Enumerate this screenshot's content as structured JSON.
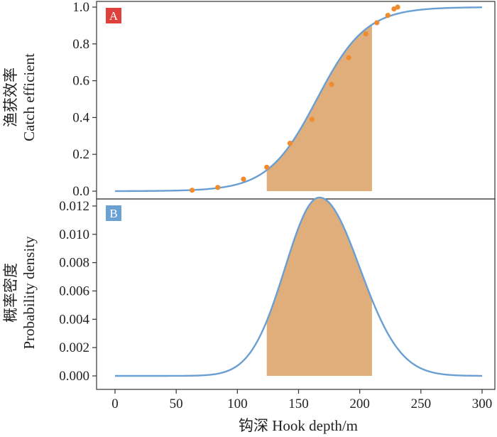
{
  "colors": {
    "curve": "#6a9fd4",
    "fill": "#dfae7b",
    "points": "#f08c2e",
    "axis": "#333333",
    "tag_a": "#e0403c",
    "tag_b": "#6aa0d2"
  },
  "chart_data": [
    {
      "panel": "A",
      "type": "line",
      "ylabel_cn": "渔获效率",
      "ylabel_en": "Catch efficient",
      "xlim": [
        0,
        300
      ],
      "ylim": [
        0,
        1.0
      ],
      "yticks": [
        "0.0",
        "0.2",
        "0.4",
        "0.6",
        "0.8",
        "1.0"
      ],
      "curve": {
        "kind": "logistic",
        "midpoint": 165,
        "scale": 20,
        "x_start": 0,
        "x_end": 300
      },
      "shaded_range": [
        124,
        210
      ],
      "points": {
        "x": [
          63,
          84,
          105,
          124,
          143,
          161,
          177,
          191,
          205,
          214,
          223,
          228,
          231
        ],
        "y": [
          0.005,
          0.02,
          0.065,
          0.13,
          0.26,
          0.39,
          0.58,
          0.725,
          0.855,
          0.915,
          0.955,
          0.99,
          1.0
        ]
      }
    },
    {
      "panel": "B",
      "type": "line",
      "ylabel_cn": "概率密度",
      "ylabel_en": "Probability density",
      "xlabel": "钩深 Hook depth/m",
      "xlim": [
        0,
        300
      ],
      "xticks": [
        "0",
        "50",
        "100",
        "150",
        "200",
        "250",
        "300"
      ],
      "ylim": [
        0,
        0.013
      ],
      "yticks": [
        "0.000",
        "0.002",
        "0.004",
        "0.006",
        "0.008",
        "0.010",
        "0.012"
      ],
      "curve": {
        "kind": "density",
        "peak_x": 167,
        "sd_left": 28,
        "sd_right": 33,
        "peak_value": 0.0126,
        "x_start": 0,
        "x_end": 300
      },
      "shaded_range": [
        124,
        210
      ]
    }
  ]
}
